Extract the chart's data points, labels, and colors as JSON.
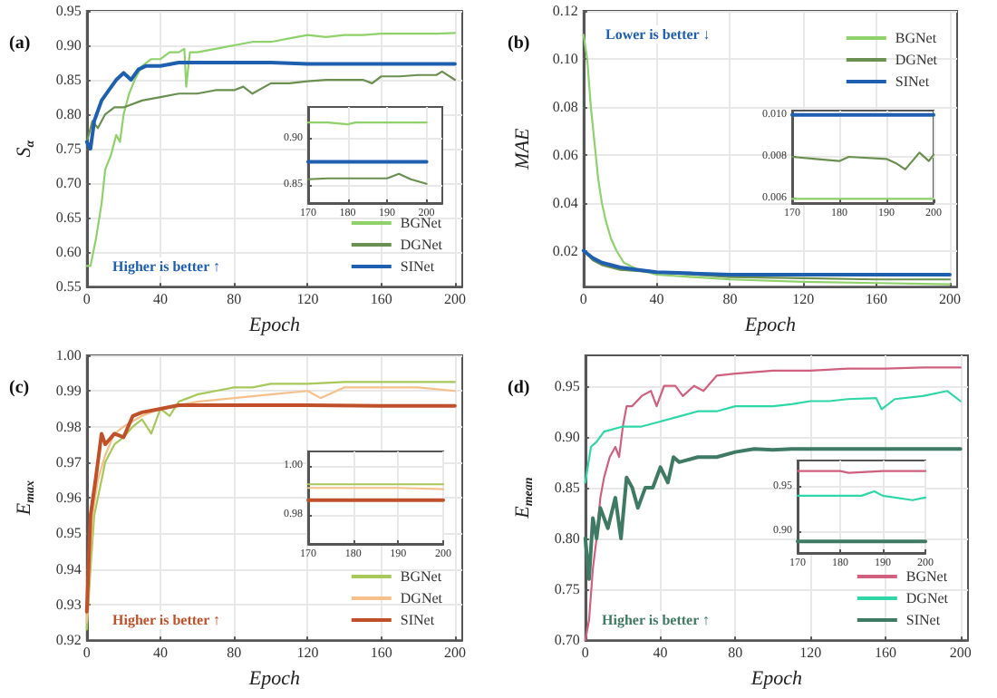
{
  "chart_data": [
    {
      "type": "line",
      "title": "(a)",
      "xlabel": "Epoch",
      "ylabel": "S$_{α}$",
      "xlim": [
        0,
        204
      ],
      "xticks": [
        0,
        40,
        80,
        120,
        160,
        200
      ],
      "ylim": [
        0.55,
        0.95
      ],
      "yticks": [
        {
          "value": 0.55,
          "label": "0.55"
        },
        {
          "value": 0.6,
          "label": "0.60"
        },
        {
          "value": 0.65,
          "label": "0.65"
        },
        {
          "value": 0.7,
          "label": "0.70"
        },
        {
          "value": 0.75,
          "label": "0.75"
        },
        {
          "value": 0.8,
          "label": "0.80"
        },
        {
          "value": 0.85,
          "label": "0.85"
        },
        {
          "value": 0.9,
          "label": "0.90"
        },
        {
          "value": 0.95,
          "label": "0.95"
        }
      ],
      "grid": true,
      "legend": "bottom right",
      "marker": "none",
      "annotations": [
        "Higher is better ↑"
      ],
      "series": [
        {
          "name": "BGNet",
          "color": "#8fd16b",
          "x": [
            0,
            2,
            5,
            8,
            10,
            13,
            16,
            18,
            20,
            23,
            26,
            30,
            35,
            40,
            45,
            50,
            53,
            54,
            56,
            60,
            70,
            80,
            90,
            100,
            110,
            120,
            130,
            140,
            150,
            160,
            170,
            180,
            190,
            200
          ],
          "values": [
            0.58,
            0.58,
            0.62,
            0.67,
            0.72,
            0.74,
            0.77,
            0.76,
            0.8,
            0.83,
            0.85,
            0.87,
            0.88,
            0.88,
            0.89,
            0.89,
            0.895,
            0.84,
            0.89,
            0.89,
            0.895,
            0.9,
            0.905,
            0.905,
            0.91,
            0.915,
            0.912,
            0.915,
            0.915,
            0.917,
            0.917,
            0.917,
            0.917,
            0.918
          ]
        },
        {
          "name": "DGNet",
          "color": "#6b8f4e",
          "x": [
            0,
            3,
            6,
            10,
            15,
            20,
            30,
            40,
            50,
            60,
            70,
            80,
            85,
            90,
            100,
            110,
            120,
            130,
            140,
            150,
            155,
            160,
            170,
            180,
            190,
            193,
            200
          ],
          "values": [
            0.76,
            0.79,
            0.78,
            0.8,
            0.81,
            0.81,
            0.82,
            0.825,
            0.83,
            0.83,
            0.835,
            0.835,
            0.84,
            0.83,
            0.845,
            0.845,
            0.848,
            0.85,
            0.85,
            0.85,
            0.845,
            0.855,
            0.855,
            0.857,
            0.857,
            0.862,
            0.85
          ]
        },
        {
          "name": "SINet",
          "color": "#1f5fb0",
          "x": [
            0,
            2,
            4,
            8,
            12,
            16,
            20,
            24,
            28,
            32,
            40,
            50,
            60,
            80,
            100,
            120,
            140,
            160,
            180,
            200
          ],
          "values": [
            0.76,
            0.75,
            0.79,
            0.82,
            0.835,
            0.85,
            0.86,
            0.85,
            0.865,
            0.87,
            0.87,
            0.875,
            0.875,
            0.875,
            0.875,
            0.873,
            0.873,
            0.873,
            0.873,
            0.873
          ]
        }
      ]
    },
    {
      "type": "line",
      "xlim": [
        170,
        204
      ],
      "xticks": [
        170,
        180,
        190,
        200
      ],
      "ylim": [
        0.83,
        0.935
      ],
      "yticks": [
        {
          "value": 0.85,
          "label": "0.85"
        },
        {
          "value": 0.9,
          "label": "0.90"
        }
      ],
      "grid": true,
      "marker": "none",
      "series": [
        {
          "color": "#8fd16b",
          "x": [
            170,
            175,
            180,
            182,
            190,
            200
          ],
          "values": [
            0.918,
            0.918,
            0.916,
            0.918,
            0.918,
            0.918
          ]
        },
        {
          "color": "#6b8f4e",
          "x": [
            170,
            175,
            180,
            185,
            190,
            193,
            196,
            200
          ],
          "values": [
            0.856,
            0.857,
            0.857,
            0.857,
            0.857,
            0.862,
            0.856,
            0.851
          ]
        },
        {
          "color": "#1f5fb0",
          "x": [
            170,
            180,
            190,
            200
          ],
          "values": [
            0.875,
            0.875,
            0.875,
            0.875
          ]
        }
      ]
    },
    {
      "type": "line",
      "title": "(b)",
      "xlabel": "Epoch",
      "ylabel": "MAE",
      "xlim": [
        0,
        204
      ],
      "xticks": [
        0,
        40,
        80,
        120,
        160,
        200
      ],
      "ylim": [
        0.005,
        0.12
      ],
      "yticks": [
        {
          "value": 0.02,
          "label": "0.02"
        },
        {
          "value": 0.04,
          "label": "0.04"
        },
        {
          "value": 0.06,
          "label": "0.06"
        },
        {
          "value": 0.08,
          "label": "0.08"
        },
        {
          "value": 0.1,
          "label": "0.10"
        },
        {
          "value": 0.12,
          "label": "0.12"
        }
      ],
      "grid": true,
      "legend": "top right",
      "marker": "none",
      "annotations": [
        "Lower is better ↓"
      ],
      "series": [
        {
          "name": "BGNet",
          "color": "#8fd16b",
          "x": [
            0,
            2,
            4,
            6,
            8,
            10,
            12,
            15,
            18,
            22,
            30,
            40,
            60,
            80,
            120,
            160,
            200
          ],
          "values": [
            0.11,
            0.1,
            0.08,
            0.065,
            0.05,
            0.04,
            0.033,
            0.025,
            0.02,
            0.015,
            0.012,
            0.01,
            0.009,
            0.008,
            0.007,
            0.0065,
            0.006
          ]
        },
        {
          "name": "DGNet",
          "color": "#6b8f4e",
          "x": [
            0,
            5,
            10,
            20,
            40,
            60,
            80,
            120,
            160,
            200
          ],
          "values": [
            0.02,
            0.016,
            0.014,
            0.012,
            0.011,
            0.01,
            0.009,
            0.0085,
            0.008,
            0.008
          ]
        },
        {
          "name": "SINet",
          "color": "#1f5fb0",
          "x": [
            0,
            5,
            10,
            20,
            30,
            40,
            60,
            80,
            120,
            160,
            200
          ],
          "values": [
            0.02,
            0.017,
            0.015,
            0.013,
            0.012,
            0.011,
            0.0105,
            0.01,
            0.01,
            0.01,
            0.01
          ]
        }
      ]
    },
    {
      "type": "line",
      "xlim": [
        170,
        200
      ],
      "xticks": [
        170,
        180,
        190,
        200
      ],
      "ylim": [
        0.0058,
        0.0102
      ],
      "yticks": [
        {
          "value": 0.006,
          "label": "0.006"
        },
        {
          "value": 0.008,
          "label": "0.008"
        },
        {
          "value": 0.01,
          "label": "0.010"
        }
      ],
      "grid": true,
      "marker": "none",
      "series": [
        {
          "color": "#8fd16b",
          "x": [
            170,
            180,
            190,
            200
          ],
          "values": [
            0.006,
            0.006,
            0.006,
            0.006
          ]
        },
        {
          "color": "#6b8f4e",
          "x": [
            170,
            175,
            180,
            182,
            190,
            192,
            194,
            197,
            199,
            200
          ],
          "values": [
            0.008,
            0.0079,
            0.0078,
            0.008,
            0.0079,
            0.0077,
            0.0074,
            0.0082,
            0.0078,
            0.0081
          ]
        },
        {
          "color": "#1f5fb0",
          "x": [
            170,
            180,
            190,
            200
          ],
          "values": [
            0.01,
            0.01,
            0.01,
            0.01
          ]
        }
      ]
    },
    {
      "type": "line",
      "title": "(c)",
      "xlabel": "Epoch",
      "ylabel": "E$_{max}$",
      "xlim": [
        0,
        204
      ],
      "xticks": [
        0,
        40,
        80,
        120,
        160,
        200
      ],
      "ylim": [
        0.92,
        1.0
      ],
      "yticks": [
        {
          "value": 0.92,
          "label": "0.92"
        },
        {
          "value": 0.93,
          "label": "0.93"
        },
        {
          "value": 0.94,
          "label": "0.94"
        },
        {
          "value": 0.95,
          "label": "0.95"
        },
        {
          "value": 0.96,
          "label": "0.96"
        },
        {
          "value": 0.97,
          "label": "0.97"
        },
        {
          "value": 0.98,
          "label": "0.98"
        },
        {
          "value": 0.99,
          "label": "0.99"
        },
        {
          "value": 1.0,
          "label": "1.00"
        }
      ],
      "grid": true,
      "legend": "bottom right",
      "marker": "none",
      "annotations": [
        "Higher is better ↑"
      ],
      "series": [
        {
          "name": "BGNet",
          "color": "#a8c85a",
          "x": [
            0,
            2,
            4,
            6,
            8,
            10,
            15,
            20,
            25,
            30,
            35,
            40,
            45,
            50,
            55,
            60,
            70,
            80,
            90,
            100,
            120,
            140,
            160,
            180,
            200
          ],
          "values": [
            0.923,
            0.94,
            0.955,
            0.96,
            0.965,
            0.97,
            0.975,
            0.977,
            0.98,
            0.982,
            0.978,
            0.985,
            0.983,
            0.987,
            0.988,
            0.989,
            0.99,
            0.991,
            0.991,
            0.992,
            0.992,
            0.9925,
            0.9925,
            0.9925,
            0.9925
          ]
        },
        {
          "name": "DGNet",
          "color": "#f5c08a",
          "x": [
            0,
            3,
            6,
            10,
            15,
            20,
            30,
            40,
            50,
            60,
            80,
            100,
            120,
            127,
            140,
            160,
            180,
            200
          ],
          "values": [
            0.925,
            0.955,
            0.965,
            0.972,
            0.978,
            0.98,
            0.983,
            0.985,
            0.986,
            0.987,
            0.988,
            0.989,
            0.99,
            0.988,
            0.991,
            0.991,
            0.991,
            0.99
          ]
        },
        {
          "name": "SINet",
          "color": "#c0502a",
          "x": [
            0,
            2,
            5,
            8,
            10,
            15,
            20,
            25,
            30,
            40,
            50,
            60,
            80,
            120,
            160,
            200
          ],
          "values": [
            0.928,
            0.955,
            0.966,
            0.978,
            0.975,
            0.978,
            0.977,
            0.983,
            0.984,
            0.985,
            0.986,
            0.986,
            0.986,
            0.986,
            0.9858,
            0.9858
          ]
        }
      ]
    },
    {
      "type": "line",
      "xlim": [
        170,
        200
      ],
      "xticks": [
        170,
        180,
        190,
        200
      ],
      "ylim": [
        0.968,
        1.006
      ],
      "yticks": [
        {
          "value": 0.98,
          "label": "0.98"
        },
        {
          "value": 1.0,
          "label": "1.00"
        }
      ],
      "grid": true,
      "marker": "none",
      "series": [
        {
          "color": "#a8c85a",
          "x": [
            170,
            180,
            190,
            200
          ],
          "values": [
            0.9925,
            0.9925,
            0.9925,
            0.9925
          ]
        },
        {
          "color": "#f5c08a",
          "x": [
            170,
            180,
            190,
            200
          ],
          "values": [
            0.991,
            0.991,
            0.991,
            0.9905
          ]
        },
        {
          "color": "#c0502a",
          "x": [
            170,
            180,
            190,
            200
          ],
          "values": [
            0.986,
            0.986,
            0.986,
            0.986
          ]
        }
      ]
    },
    {
      "type": "line",
      "title": "(d)",
      "xlabel": "Epoch",
      "ylabel": "E$_{mean}$",
      "xlim": [
        0,
        204
      ],
      "xticks": [
        0,
        40,
        80,
        120,
        160,
        200
      ],
      "ylim": [
        0.7,
        0.98
      ],
      "yticks": [
        {
          "value": 0.7,
          "label": "0.70"
        },
        {
          "value": 0.75,
          "label": "0.75"
        },
        {
          "value": 0.8,
          "label": "0.80"
        },
        {
          "value": 0.85,
          "label": "0.85"
        },
        {
          "value": 0.9,
          "label": "0.90"
        },
        {
          "value": 0.95,
          "label": "0.95"
        }
      ],
      "grid": true,
      "legend": "bottom right",
      "marker": "none",
      "annotations": [
        "Higher is better ↑"
      ],
      "series": [
        {
          "name": "BGNet",
          "color": "#d0607e",
          "x": [
            0,
            2,
            4,
            6,
            8,
            10,
            13,
            16,
            18,
            20,
            22,
            25,
            30,
            35,
            38,
            42,
            48,
            52,
            58,
            63,
            70,
            80,
            100,
            120,
            140,
            160,
            180,
            200
          ],
          "values": [
            0.7,
            0.72,
            0.77,
            0.8,
            0.84,
            0.86,
            0.88,
            0.89,
            0.88,
            0.91,
            0.93,
            0.93,
            0.94,
            0.945,
            0.93,
            0.95,
            0.95,
            0.94,
            0.95,
            0.945,
            0.96,
            0.962,
            0.965,
            0.965,
            0.967,
            0.967,
            0.968,
            0.968
          ]
        },
        {
          "name": "DGNet",
          "color": "#2fd6a8",
          "x": [
            0,
            3,
            6,
            10,
            20,
            30,
            40,
            50,
            60,
            70,
            80,
            90,
            100,
            110,
            120,
            130,
            140,
            155,
            158,
            165,
            180,
            193,
            200
          ],
          "values": [
            0.855,
            0.89,
            0.895,
            0.905,
            0.91,
            0.91,
            0.915,
            0.92,
            0.925,
            0.925,
            0.93,
            0.93,
            0.93,
            0.932,
            0.935,
            0.935,
            0.937,
            0.938,
            0.927,
            0.937,
            0.94,
            0.945,
            0.935
          ]
        },
        {
          "name": "SINet",
          "color": "#3f7a64",
          "x": [
            0,
            2,
            4,
            6,
            8,
            12,
            16,
            19,
            22,
            25,
            28,
            32,
            36,
            40,
            44,
            47,
            50,
            60,
            70,
            80,
            90,
            100,
            110,
            120,
            200
          ],
          "values": [
            0.8,
            0.76,
            0.82,
            0.8,
            0.83,
            0.81,
            0.84,
            0.8,
            0.86,
            0.85,
            0.83,
            0.85,
            0.85,
            0.87,
            0.855,
            0.88,
            0.875,
            0.88,
            0.88,
            0.885,
            0.888,
            0.887,
            0.888,
            0.888,
            0.888
          ]
        }
      ]
    },
    {
      "type": "line",
      "xlim": [
        170,
        200
      ],
      "xticks": [
        170,
        180,
        190,
        200
      ],
      "ylim": [
        0.875,
        0.98
      ],
      "yticks": [
        {
          "value": 0.9,
          "label": "0.90"
        },
        {
          "value": 0.95,
          "label": "0.95"
        }
      ],
      "grid": true,
      "marker": "none",
      "series": [
        {
          "color": "#d0607e",
          "x": [
            170,
            180,
            182,
            190,
            200
          ],
          "values": [
            0.968,
            0.968,
            0.966,
            0.968,
            0.968
          ]
        },
        {
          "color": "#2fd6a8",
          "x": [
            170,
            180,
            185,
            188,
            190,
            197,
            200
          ],
          "values": [
            0.94,
            0.94,
            0.94,
            0.945,
            0.94,
            0.935,
            0.938
          ]
        },
        {
          "color": "#3f7a64",
          "x": [
            170,
            180,
            190,
            200
          ],
          "values": [
            0.888,
            0.888,
            0.888,
            0.888
          ]
        }
      ]
    }
  ]
}
